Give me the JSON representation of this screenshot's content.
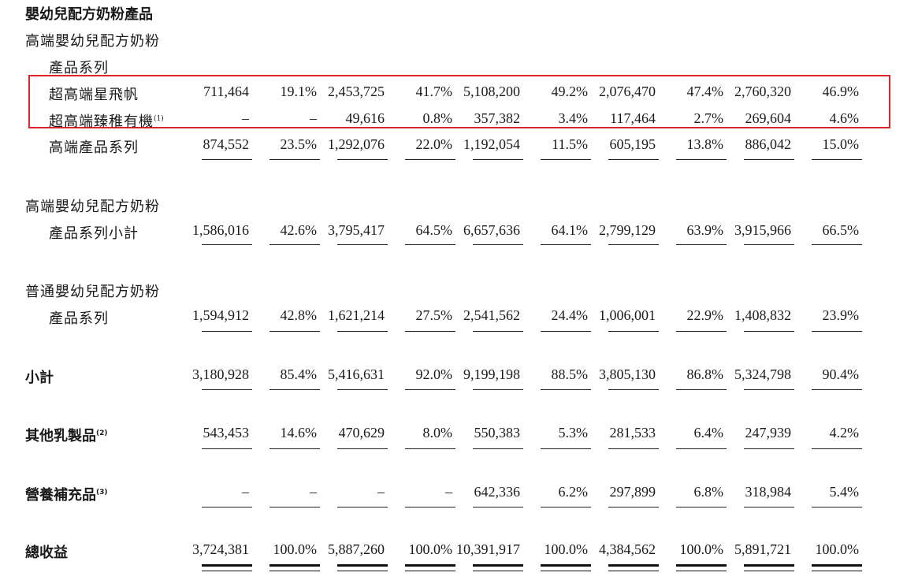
{
  "header": {
    "title": "嬰幼兒配方奶粉產品",
    "group1_line1": "高端嬰幼兒配方奶粉",
    "group1_line2": "產品系列"
  },
  "rows": {
    "super_premium_xingfeifan": {
      "label": "超高端星飛帆",
      "values": [
        "711,464",
        "19.1%",
        "2,453,725",
        "41.7%",
        "5,108,200",
        "49.2%",
        "2,076,470",
        "47.4%",
        "2,760,320",
        "46.9%"
      ]
    },
    "super_premium_zhenzhi": {
      "label": "超高端臻稚有機",
      "note": "(1)",
      "values": [
        "–",
        "–",
        "49,616",
        "0.8%",
        "357,382",
        "3.4%",
        "117,464",
        "2.7%",
        "269,604",
        "4.6%"
      ]
    },
    "premium_series": {
      "label": "高端產品系列",
      "values": [
        "874,552",
        "23.5%",
        "1,292,076",
        "22.0%",
        "1,192,054",
        "11.5%",
        "605,195",
        "13.8%",
        "886,042",
        "15.0%"
      ]
    },
    "premium_subtotal": {
      "label_line1": "高端嬰幼兒配方奶粉",
      "label_line2": "產品系列小計",
      "values": [
        "1,586,016",
        "42.6%",
        "3,795,417",
        "64.5%",
        "6,657,636",
        "64.1%",
        "2,799,129",
        "63.9%",
        "3,915,966",
        "66.5%"
      ]
    },
    "regular": {
      "label_line1": "普通嬰幼兒配方奶粉",
      "label_line2": "產品系列",
      "values": [
        "1,594,912",
        "42.8%",
        "1,621,214",
        "27.5%",
        "2,541,562",
        "24.4%",
        "1,006,001",
        "22.9%",
        "1,408,832",
        "23.9%"
      ]
    },
    "subtotal": {
      "label": "小計",
      "values": [
        "3,180,928",
        "85.4%",
        "5,416,631",
        "92.0%",
        "9,199,198",
        "88.5%",
        "3,805,130",
        "86.8%",
        "5,324,798",
        "90.4%"
      ]
    },
    "other_dairy": {
      "label": "其他乳製品",
      "note": "(2)",
      "values": [
        "543,453",
        "14.6%",
        "470,629",
        "8.0%",
        "550,383",
        "5.3%",
        "281,533",
        "6.4%",
        "247,939",
        "4.2%"
      ]
    },
    "nutrition": {
      "label": "營養補充品",
      "note": "(3)",
      "values": [
        "–",
        "–",
        "–",
        "–",
        "642,336",
        "6.2%",
        "297,899",
        "6.8%",
        "318,984",
        "5.4%"
      ]
    },
    "total": {
      "label": "總收益",
      "values": [
        "3,724,381",
        "100.0%",
        "5,887,260",
        "100.0%",
        "10,391,917",
        "100.0%",
        "4,384,562",
        "100.0%",
        "5,891,721",
        "100.0%"
      ]
    }
  },
  "colors": {
    "highlight_border": "#e0232b"
  }
}
